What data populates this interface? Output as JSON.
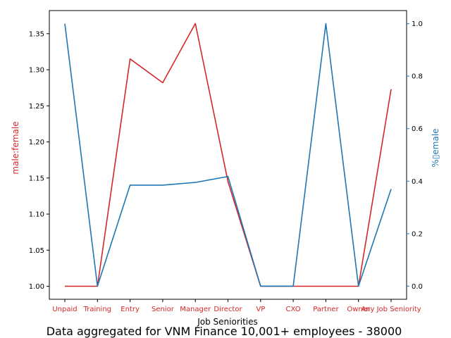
{
  "chart_data": {
    "type": "line",
    "categories": [
      "Unpaid",
      "Training",
      "Entry",
      "Senior",
      "Manager",
      "Director",
      "VP",
      "CXO",
      "Partner",
      "Owner",
      "Any Job Seniority"
    ],
    "xlabel": "Job Seniorities",
    "caption": "Data aggregated for VNM Finance 10,001+ employees - 38000",
    "left_axis": {
      "label": "male:female",
      "color": "#d62728",
      "ylim": [
        0.982,
        1.382
      ],
      "ticks": [
        "1.00",
        "1.05",
        "1.10",
        "1.15",
        "1.20",
        "1.25",
        "1.30",
        "1.35"
      ]
    },
    "right_axis": {
      "label": "%▯emale",
      "color": "#1f77b4",
      "ylim": [
        -0.05,
        1.05
      ],
      "ticks": [
        "0.0",
        "0.2",
        "0.4",
        "0.6",
        "0.8",
        "1.0"
      ]
    },
    "series": [
      {
        "axis": "left",
        "color": "#d62728",
        "values": [
          1.0,
          1.0,
          1.315,
          1.282,
          1.364,
          1.145,
          1.0,
          1.0,
          1.0,
          1.0,
          1.273
        ]
      },
      {
        "axis": "right",
        "color": "#1f77b4",
        "values": [
          1.0,
          0.0,
          0.385,
          0.385,
          0.395,
          0.418,
          0.0,
          0.0,
          1.0,
          0.0,
          0.37
        ]
      }
    ]
  }
}
